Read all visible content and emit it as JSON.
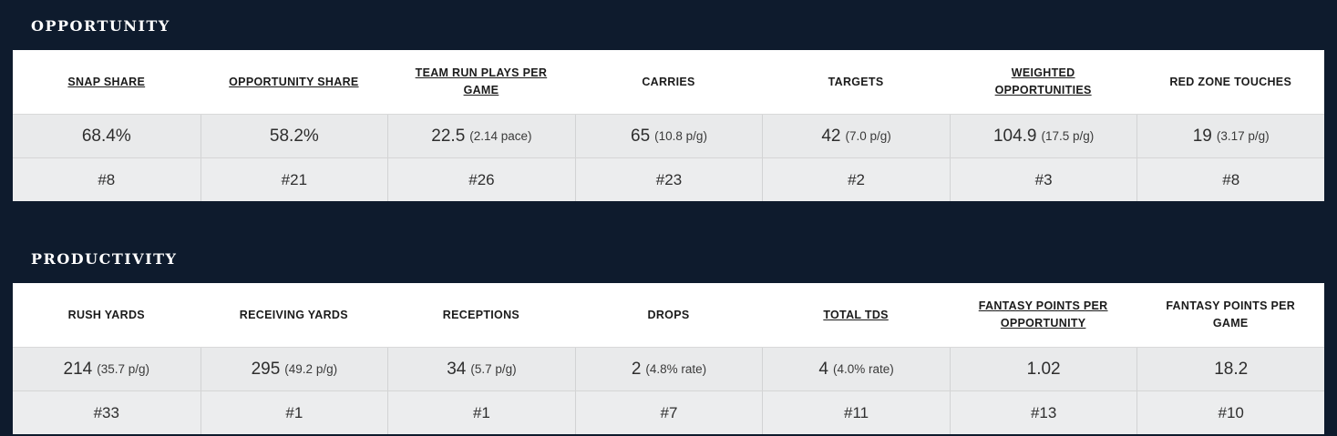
{
  "theme": {
    "background_navy": "#0e1b2d",
    "header_row_bg": "#ffffff",
    "data_row_bg": "#e9eaeb",
    "border_gray": "#d2d3d4",
    "heading_text": "#ffffff",
    "cell_text": "#2e2e2e"
  },
  "sections": [
    {
      "title": "OPPORTUNITY",
      "columns": [
        {
          "label": "SNAP SHARE",
          "linked": true,
          "value": "68.4%",
          "note": "",
          "rank": "#8"
        },
        {
          "label": "OPPORTUNITY SHARE",
          "linked": true,
          "value": "58.2%",
          "note": "",
          "rank": "#21"
        },
        {
          "label": "TEAM RUN PLAYS PER GAME",
          "linked": true,
          "value": "22.5",
          "note": "(2.14 pace)",
          "rank": "#26"
        },
        {
          "label": "CARRIES",
          "linked": false,
          "value": "65",
          "note": "(10.8 p/g)",
          "rank": "#23"
        },
        {
          "label": "TARGETS",
          "linked": false,
          "value": "42",
          "note": "(7.0 p/g)",
          "rank": "#2"
        },
        {
          "label": "WEIGHTED OPPORTUNITIES",
          "linked": true,
          "value": "104.9",
          "note": "(17.5 p/g)",
          "rank": "#3"
        },
        {
          "label": "RED ZONE TOUCHES",
          "linked": false,
          "value": "19",
          "note": "(3.17 p/g)",
          "rank": "#8"
        }
      ]
    },
    {
      "title": "PRODUCTIVITY",
      "columns": [
        {
          "label": "RUSH YARDS",
          "linked": false,
          "value": "214",
          "note": "(35.7 p/g)",
          "rank": "#33"
        },
        {
          "label": "RECEIVING YARDS",
          "linked": false,
          "value": "295",
          "note": "(49.2 p/g)",
          "rank": "#1"
        },
        {
          "label": "RECEPTIONS",
          "linked": false,
          "value": "34",
          "note": "(5.7 p/g)",
          "rank": "#1"
        },
        {
          "label": "DROPS",
          "linked": false,
          "value": "2",
          "note": "(4.8% rate)",
          "rank": "#7"
        },
        {
          "label": "TOTAL TDS",
          "linked": true,
          "value": "4",
          "note": "(4.0% rate)",
          "rank": "#11"
        },
        {
          "label": "FANTASY POINTS PER OPPORTUNITY",
          "linked": true,
          "value": "1.02",
          "note": "",
          "rank": "#13"
        },
        {
          "label": "FANTASY POINTS PER GAME",
          "linked": false,
          "value": "18.2",
          "note": "",
          "rank": "#10"
        }
      ]
    }
  ]
}
